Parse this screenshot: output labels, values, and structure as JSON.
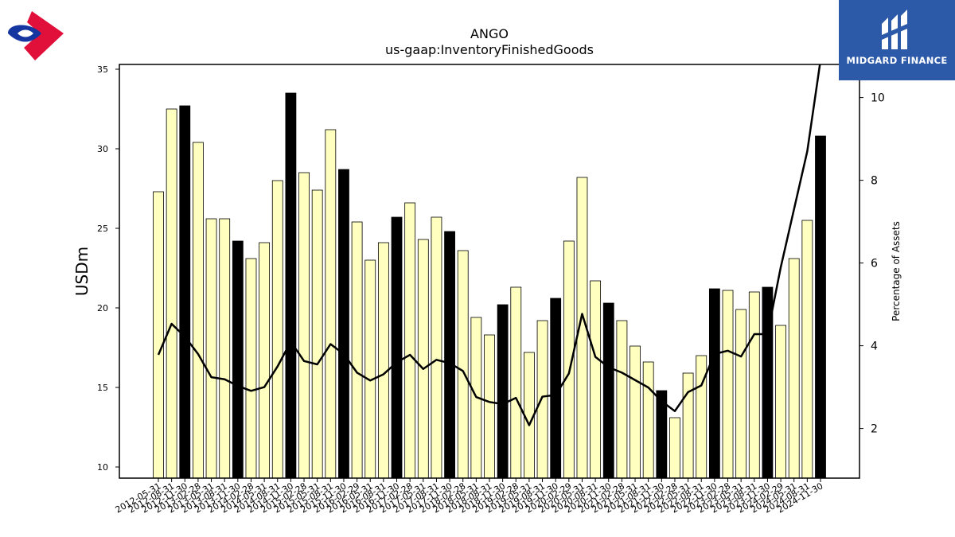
{
  "brand": {
    "left_logo_icon": "red-blue-diamond-logo-icon",
    "right_logo_icon": "midgard-mark-icon",
    "right_name": "MIDGARD FINANCE",
    "right_bg": "#2d5aa8"
  },
  "colors": {
    "bar_normal": "#ffffc0",
    "bar_highlight": "#000000",
    "line": "#000000"
  },
  "chart_data": {
    "type": "bar",
    "title": "ANGO",
    "subtitle": "us-gaap:InventoryFinishedGoods",
    "ylabel": "USDm",
    "y2label": "Percentage of Assets",
    "ylim": [
      9.3,
      35.3
    ],
    "y2lim": [
      0.8,
      10.8
    ],
    "yticks": [
      10,
      15,
      20,
      25,
      30,
      35
    ],
    "y2ticks": [
      2,
      4,
      6,
      8,
      10
    ],
    "categories": [
      "2012-05-31",
      "2012-08-31",
      "2012-11-30",
      "2013-02-28",
      "2013-05-31",
      "2013-08-31",
      "2013-11-30",
      "2014-02-28",
      "2014-05-31",
      "2014-08-31",
      "2014-11-30",
      "2015-02-28",
      "2015-05-31",
      "2015-08-31",
      "2015-11-30",
      "2016-02-29",
      "2016-05-31",
      "2016-08-31",
      "2016-11-30",
      "2017-02-28",
      "2017-05-31",
      "2017-08-31",
      "2017-11-30",
      "2018-02-28",
      "2018-05-31",
      "2018-08-31",
      "2018-11-30",
      "2019-02-28",
      "2019-05-31",
      "2019-08-31",
      "2019-11-30",
      "2020-02-29",
      "2020-05-31",
      "2020-08-31",
      "2020-11-30",
      "2021-02-28",
      "2021-05-31",
      "2021-08-31",
      "2021-11-30",
      "2022-02-28",
      "2022-05-31",
      "2022-08-31",
      "2022-11-30",
      "2023-02-28",
      "2023-05-31",
      "2023-08-31",
      "2023-11-30",
      "2024-02-29",
      "2024-05-31",
      "2024-08-31",
      "2024-11-30"
    ],
    "series": [
      {
        "kind": "bar",
        "axis": "left",
        "values": [
          27.3,
          32.5,
          32.7,
          30.4,
          25.6,
          25.6,
          24.2,
          23.1,
          24.1,
          28.0,
          33.5,
          28.5,
          27.4,
          31.2,
          28.7,
          25.4,
          23.0,
          24.1,
          25.7,
          26.6,
          24.3,
          25.7,
          24.8,
          23.6,
          19.4,
          18.3,
          20.2,
          21.3,
          17.2,
          19.2,
          20.6,
          24.2,
          28.2,
          21.7,
          20.3,
          19.2,
          17.6,
          16.6,
          14.8,
          13.1,
          15.9,
          17.0,
          21.2,
          21.1,
          19.9,
          21.0,
          21.3,
          18.9,
          23.1,
          25.5,
          30.8
        ],
        "highlight": [
          false,
          false,
          true,
          false,
          false,
          false,
          true,
          false,
          false,
          false,
          true,
          false,
          false,
          false,
          true,
          false,
          false,
          false,
          true,
          false,
          false,
          false,
          true,
          false,
          false,
          false,
          true,
          false,
          false,
          false,
          true,
          false,
          false,
          false,
          true,
          false,
          false,
          false,
          true,
          false,
          false,
          false,
          true,
          false,
          false,
          false,
          true,
          false,
          false,
          false,
          true
        ]
      },
      {
        "kind": "line",
        "axis": "right",
        "values": [
          3.78,
          4.53,
          4.22,
          3.8,
          3.24,
          3.19,
          3.03,
          2.91,
          3.0,
          3.5,
          4.1,
          3.63,
          3.55,
          4.04,
          3.8,
          3.35,
          3.16,
          3.31,
          3.6,
          3.78,
          3.44,
          3.66,
          3.58,
          3.39,
          2.76,
          2.64,
          2.59,
          2.74,
          2.08,
          2.77,
          2.81,
          3.33,
          4.77,
          3.73,
          3.48,
          3.35,
          3.17,
          2.99,
          2.66,
          2.42,
          2.88,
          3.04,
          3.8,
          3.88,
          3.74,
          4.28,
          4.28,
          5.9,
          7.3,
          8.7,
          10.9
        ]
      }
    ],
    "legend": "none",
    "grid": false
  }
}
